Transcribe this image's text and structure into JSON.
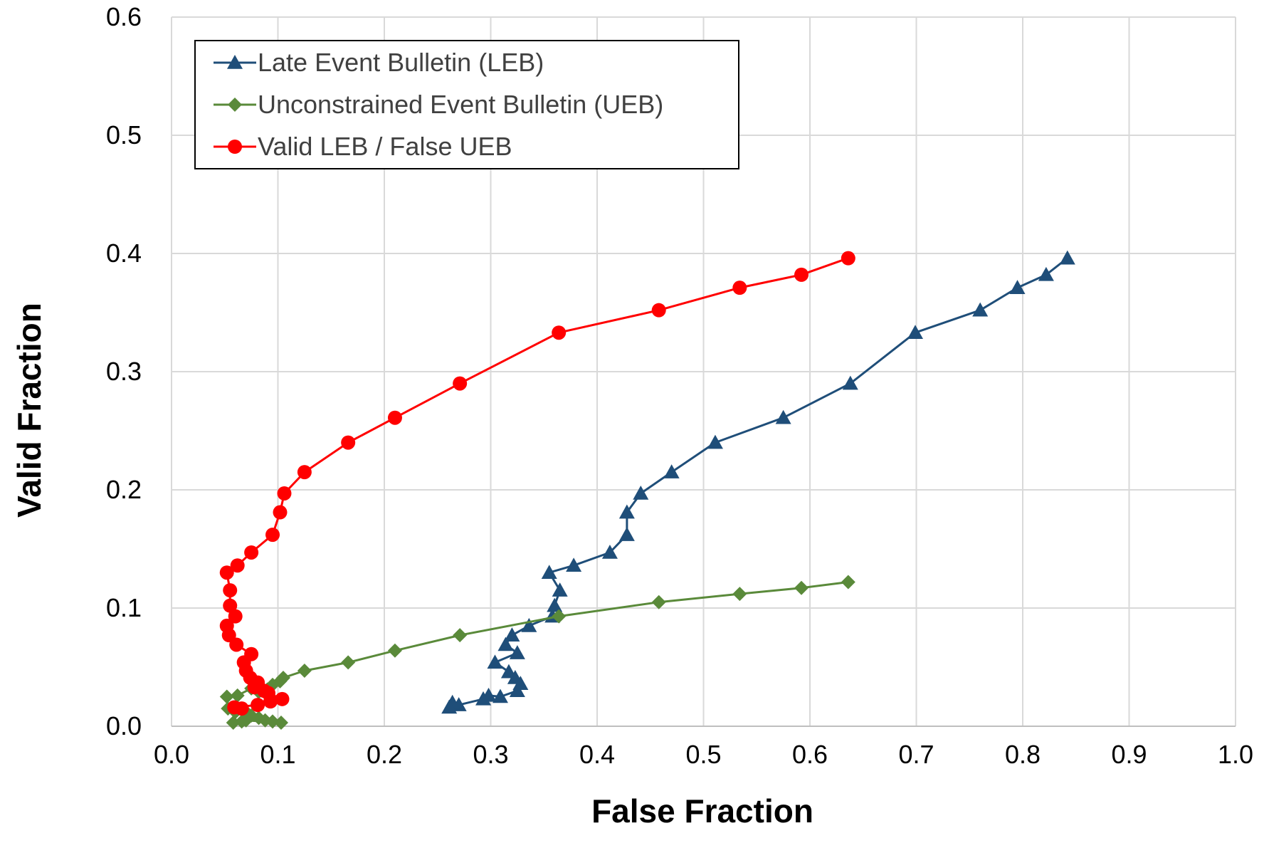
{
  "chart_data": {
    "type": "line",
    "title": "",
    "xlabel": "False Fraction",
    "ylabel": "Valid Fraction",
    "xlim": [
      0.0,
      1.0
    ],
    "ylim": [
      0.0,
      0.6
    ],
    "x_ticks": [
      "0.0",
      "0.1",
      "0.2",
      "0.3",
      "0.4",
      "0.5",
      "0.6",
      "0.7",
      "0.8",
      "0.9",
      "1.0"
    ],
    "y_ticks": [
      "0.0",
      "0.1",
      "0.2",
      "0.3",
      "0.4",
      "0.5",
      "0.6"
    ],
    "grid": true,
    "legend_position": "top-left",
    "series": [
      {
        "name": "Late Event Bulletin (LEB)",
        "color": "#1f4e79",
        "marker": "triangle",
        "points": [
          [
            0.842,
            0.396
          ],
          [
            0.822,
            0.382
          ],
          [
            0.795,
            0.371
          ],
          [
            0.76,
            0.352
          ],
          [
            0.699,
            0.333
          ],
          [
            0.638,
            0.29
          ],
          [
            0.575,
            0.261
          ],
          [
            0.511,
            0.24
          ],
          [
            0.47,
            0.215
          ],
          [
            0.441,
            0.197
          ],
          [
            0.428,
            0.181
          ],
          [
            0.428,
            0.162
          ],
          [
            0.412,
            0.147
          ],
          [
            0.378,
            0.136
          ],
          [
            0.355,
            0.13
          ],
          [
            0.365,
            0.115
          ],
          [
            0.36,
            0.102
          ],
          [
            0.358,
            0.093
          ],
          [
            0.336,
            0.085
          ],
          [
            0.32,
            0.077
          ],
          [
            0.314,
            0.069
          ],
          [
            0.325,
            0.062
          ],
          [
            0.304,
            0.054
          ],
          [
            0.317,
            0.046
          ],
          [
            0.323,
            0.041
          ],
          [
            0.328,
            0.036
          ],
          [
            0.325,
            0.03
          ],
          [
            0.309,
            0.025
          ],
          [
            0.298,
            0.026
          ],
          [
            0.293,
            0.023
          ],
          [
            0.27,
            0.018
          ],
          [
            0.264,
            0.02
          ],
          [
            0.261,
            0.016
          ]
        ]
      },
      {
        "name": "Unconstrained Event Bulletin (UEB)",
        "color": "#5a8a3a",
        "marker": "diamond",
        "points": [
          [
            0.636,
            0.122
          ],
          [
            0.592,
            0.117
          ],
          [
            0.534,
            0.112
          ],
          [
            0.458,
            0.105
          ],
          [
            0.364,
            0.093
          ],
          [
            0.271,
            0.077
          ],
          [
            0.21,
            0.064
          ],
          [
            0.166,
            0.054
          ],
          [
            0.125,
            0.047
          ],
          [
            0.105,
            0.041
          ],
          [
            0.102,
            0.038
          ],
          [
            0.095,
            0.035
          ],
          [
            0.09,
            0.031
          ],
          [
            0.082,
            0.029
          ],
          [
            0.075,
            0.032
          ],
          [
            0.062,
            0.026
          ],
          [
            0.052,
            0.025
          ],
          [
            0.053,
            0.015
          ],
          [
            0.06,
            0.012
          ],
          [
            0.068,
            0.014
          ],
          [
            0.075,
            0.009
          ],
          [
            0.082,
            0.007
          ],
          [
            0.088,
            0.005
          ],
          [
            0.095,
            0.004
          ],
          [
            0.103,
            0.003
          ],
          [
            0.07,
            0.005
          ],
          [
            0.066,
            0.004
          ],
          [
            0.058,
            0.003
          ]
        ]
      },
      {
        "name": "Valid LEB / False UEB",
        "color": "#ff0000",
        "marker": "circle",
        "points": [
          [
            0.636,
            0.396
          ],
          [
            0.592,
            0.382
          ],
          [
            0.534,
            0.371
          ],
          [
            0.458,
            0.352
          ],
          [
            0.364,
            0.333
          ],
          [
            0.271,
            0.29
          ],
          [
            0.21,
            0.261
          ],
          [
            0.166,
            0.24
          ],
          [
            0.125,
            0.215
          ],
          [
            0.106,
            0.197
          ],
          [
            0.102,
            0.181
          ],
          [
            0.095,
            0.162
          ],
          [
            0.075,
            0.147
          ],
          [
            0.062,
            0.136
          ],
          [
            0.052,
            0.13
          ],
          [
            0.055,
            0.115
          ],
          [
            0.055,
            0.102
          ],
          [
            0.06,
            0.093
          ],
          [
            0.052,
            0.085
          ],
          [
            0.054,
            0.077
          ],
          [
            0.061,
            0.069
          ],
          [
            0.075,
            0.061
          ],
          [
            0.068,
            0.054
          ],
          [
            0.07,
            0.047
          ],
          [
            0.074,
            0.041
          ],
          [
            0.081,
            0.037
          ],
          [
            0.078,
            0.033
          ],
          [
            0.087,
            0.03
          ],
          [
            0.091,
            0.028
          ],
          [
            0.104,
            0.023
          ],
          [
            0.093,
            0.021
          ],
          [
            0.081,
            0.018
          ],
          [
            0.059,
            0.016
          ],
          [
            0.066,
            0.015
          ]
        ]
      }
    ]
  }
}
